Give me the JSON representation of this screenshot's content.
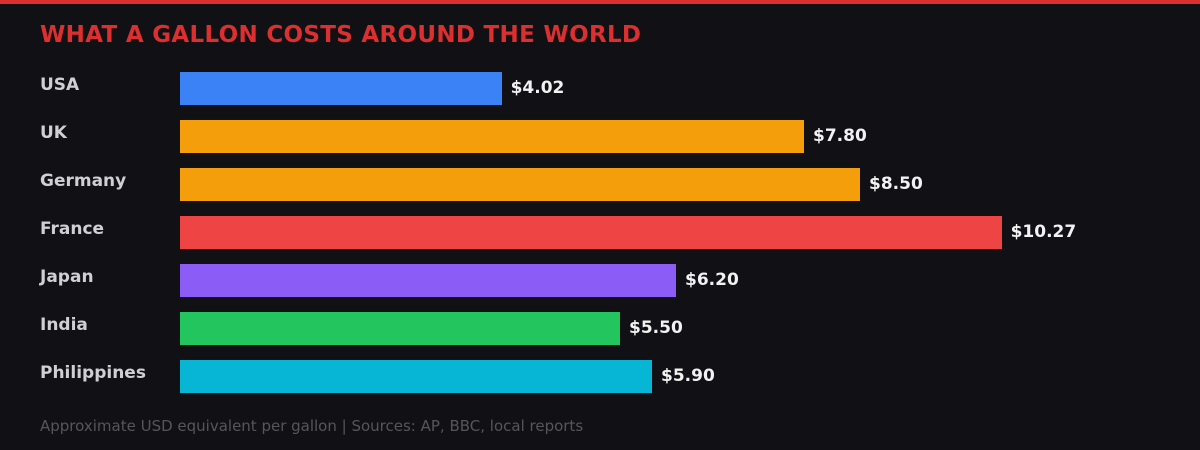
{
  "header": {
    "title": "WHAT A GALLON COSTS AROUND THE WORLD",
    "accent_color": "#dc2f2f"
  },
  "footer": {
    "note": "Approximate USD equivalent per gallon | Sources: AP, BBC, local reports"
  },
  "rows": [
    {
      "country": "USA",
      "value": 4.02,
      "label": "$4.02",
      "color": "#3b82f6"
    },
    {
      "country": "UK",
      "value": 7.8,
      "label": "$7.80",
      "color": "#f59e0b"
    },
    {
      "country": "Germany",
      "value": 8.5,
      "label": "$8.50",
      "color": "#f59e0b"
    },
    {
      "country": "France",
      "value": 10.27,
      "label": "$10.27",
      "color": "#ef4444"
    },
    {
      "country": "Japan",
      "value": 6.2,
      "label": "$6.20",
      "color": "#8b5cf6"
    },
    {
      "country": "India",
      "value": 5.5,
      "label": "$5.50",
      "color": "#22c55e"
    },
    {
      "country": "Philippines",
      "value": 5.9,
      "label": "$5.90",
      "color": "#06b6d4"
    }
  ],
  "chart_data": {
    "type": "bar",
    "orientation": "horizontal",
    "title": "WHAT A GALLON COSTS AROUND THE WORLD",
    "categories": [
      "USA",
      "UK",
      "Germany",
      "France",
      "Japan",
      "India",
      "Philippines"
    ],
    "values": [
      4.02,
      7.8,
      8.5,
      10.27,
      6.2,
      5.5,
      5.9
    ],
    "value_labels": [
      "$4.02",
      "$7.80",
      "$8.50",
      "$10.27",
      "$6.20",
      "$5.50",
      "$5.90"
    ],
    "colors": [
      "#3b82f6",
      "#f59e0b",
      "#f59e0b",
      "#ef4444",
      "#8b5cf6",
      "#22c55e",
      "#06b6d4"
    ],
    "xlabel": "",
    "ylabel": "",
    "unit": "USD per gallon",
    "grid": false,
    "legend": null,
    "annotation": "Approximate USD equivalent per gallon | Sources: AP, BBC, local reports"
  }
}
